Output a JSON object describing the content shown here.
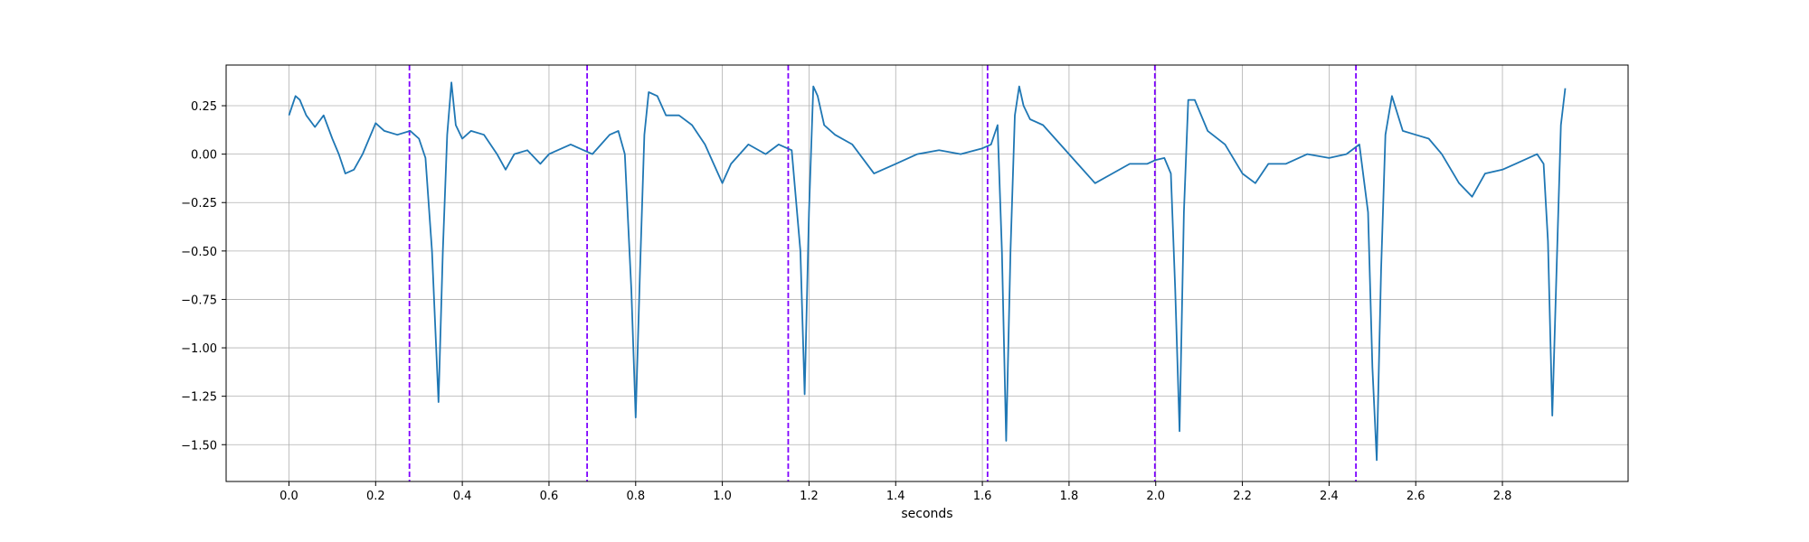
{
  "chart_data": {
    "type": "line",
    "title": "",
    "xlabel": "seconds",
    "ylabel": "",
    "xlim": [
      -0.145,
      3.09
    ],
    "ylim": [
      -1.69,
      0.46
    ],
    "xticks": [
      0.0,
      0.2,
      0.4,
      0.6,
      0.8,
      1.0,
      1.2,
      1.4,
      1.6,
      1.8,
      2.0,
      2.2,
      2.4,
      2.6,
      2.8
    ],
    "xtick_labels": [
      "0.0",
      "0.2",
      "0.4",
      "0.6",
      "0.8",
      "1.0",
      "1.2",
      "1.4",
      "1.6",
      "1.8",
      "2.0",
      "2.2",
      "2.4",
      "2.6",
      "2.8"
    ],
    "yticks": [
      0.25,
      0.0,
      -0.25,
      -0.5,
      -0.75,
      -1.0,
      -1.25,
      -1.5
    ],
    "ytick_labels": [
      "0.25",
      "0.00",
      "−0.25",
      "−0.50",
      "−0.75",
      "−1.00",
      "−1.25",
      "−1.50"
    ],
    "grid": true,
    "line_color": "#1f77b4",
    "marker_color": "#7f00ff",
    "vertical_markers": [
      0.278,
      0.688,
      1.152,
      1.612,
      1.998,
      2.462
    ],
    "series": [
      {
        "x": [
          0.0,
          0.015,
          0.025,
          0.04,
          0.06,
          0.08,
          0.1,
          0.115,
          0.13,
          0.15,
          0.17,
          0.2,
          0.22,
          0.25,
          0.28,
          0.3,
          0.315,
          0.33,
          0.345,
          0.355,
          0.365,
          0.375,
          0.385,
          0.4,
          0.42,
          0.45,
          0.48,
          0.5,
          0.52,
          0.55,
          0.58,
          0.6,
          0.62,
          0.65,
          0.68,
          0.7,
          0.72,
          0.74,
          0.76,
          0.775,
          0.79,
          0.8,
          0.81,
          0.82,
          0.83,
          0.85,
          0.87,
          0.9,
          0.93,
          0.96,
          0.98,
          1.0,
          1.02,
          1.04,
          1.06,
          1.1,
          1.13,
          1.16,
          1.18,
          1.19,
          1.2,
          1.21,
          1.22,
          1.235,
          1.26,
          1.3,
          1.35,
          1.4,
          1.45,
          1.5,
          1.55,
          1.6,
          1.62,
          1.635,
          1.645,
          1.655,
          1.665,
          1.675,
          1.685,
          1.695,
          1.71,
          1.74,
          1.78,
          1.82,
          1.86,
          1.9,
          1.94,
          1.98,
          2.0,
          2.02,
          2.035,
          2.045,
          2.055,
          2.065,
          2.075,
          2.09,
          2.12,
          2.16,
          2.2,
          2.23,
          2.26,
          2.3,
          2.35,
          2.4,
          2.44,
          2.47,
          2.49,
          2.5,
          2.51,
          2.52,
          2.53,
          2.545,
          2.57,
          2.6,
          2.63,
          2.66,
          2.7,
          2.73,
          2.76,
          2.8,
          2.83,
          2.86,
          2.88,
          2.895,
          2.905,
          2.915,
          2.925,
          2.935,
          2.945
        ],
        "y": [
          0.2,
          0.3,
          0.28,
          0.2,
          0.14,
          0.2,
          0.08,
          0.0,
          -0.1,
          -0.08,
          0.0,
          0.16,
          0.12,
          0.1,
          0.12,
          0.08,
          -0.02,
          -0.5,
          -1.28,
          -0.5,
          0.1,
          0.37,
          0.15,
          0.08,
          0.12,
          0.1,
          0.0,
          -0.08,
          0.0,
          0.02,
          -0.05,
          0.0,
          0.02,
          0.05,
          0.02,
          0.0,
          0.05,
          0.1,
          0.12,
          0.0,
          -0.7,
          -1.36,
          -0.6,
          0.1,
          0.32,
          0.3,
          0.2,
          0.2,
          0.15,
          0.05,
          -0.05,
          -0.15,
          -0.05,
          0.0,
          0.05,
          0.0,
          0.05,
          0.02,
          -0.5,
          -1.24,
          -0.3,
          0.35,
          0.3,
          0.15,
          0.1,
          0.05,
          -0.1,
          -0.05,
          0.0,
          0.02,
          0.0,
          0.03,
          0.05,
          0.15,
          -0.5,
          -1.48,
          -0.5,
          0.2,
          0.35,
          0.25,
          0.18,
          0.15,
          0.05,
          -0.05,
          -0.15,
          -0.1,
          -0.05,
          -0.05,
          -0.03,
          -0.02,
          -0.1,
          -0.7,
          -1.43,
          -0.3,
          0.28,
          0.28,
          0.12,
          0.05,
          -0.1,
          -0.15,
          -0.05,
          -0.05,
          0.0,
          -0.02,
          0.0,
          0.05,
          -0.3,
          -1.1,
          -1.58,
          -0.6,
          0.1,
          0.3,
          0.12,
          0.1,
          0.08,
          0.0,
          -0.15,
          -0.22,
          -0.1,
          -0.08,
          -0.05,
          -0.02,
          0.0,
          -0.05,
          -0.45,
          -1.35,
          -0.6,
          0.15,
          0.34
        ]
      }
    ]
  }
}
